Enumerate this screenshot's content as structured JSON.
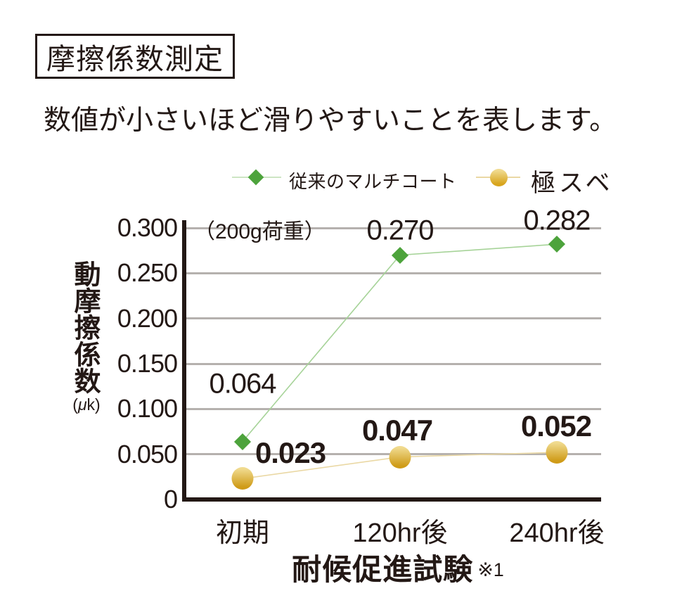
{
  "header": {
    "title": "摩擦係数測定",
    "subtitle": "数値が小さいほど滑りやすいことを表します。"
  },
  "chart_data": {
    "type": "line",
    "categories": [
      "初期",
      "120hr後",
      "240hr後"
    ],
    "series": [
      {
        "name": "従来のマルチコート",
        "values": [
          0.064,
          0.27,
          0.282
        ],
        "labels": [
          "0.064",
          "0.270",
          "0.282"
        ],
        "marker": "diamond",
        "marker_color": "#4da33c",
        "line_color": "#a6d398",
        "label_bold": false
      },
      {
        "name": "極スベ",
        "values": [
          0.023,
          0.047,
          0.052
        ],
        "labels": [
          "0.023",
          "0.047",
          "0.052"
        ],
        "marker": "circle",
        "marker_color": "#d8a51e",
        "marker_color_light": "#f0da8e",
        "line_color": "#ead8a4",
        "label_bold": true
      }
    ],
    "ylabel": "動摩擦係数",
    "ylabel_unit": "(μk)",
    "xlabel": "耐候促進試験",
    "xlabel_note": "※1",
    "annotation": "（200g荷重）",
    "yticks": [
      0,
      0.05,
      0.1,
      0.15,
      0.2,
      0.25,
      0.3
    ],
    "ytick_labels": [
      "0",
      "0.050",
      "0.100",
      "0.150",
      "0.200",
      "0.250",
      "0.300"
    ],
    "ylim": [
      0,
      0.31
    ],
    "grid": true,
    "legend_position": "top"
  },
  "colors": {
    "ink": "#231815",
    "grid": "#b5b1ae",
    "background": "#ffffff"
  }
}
